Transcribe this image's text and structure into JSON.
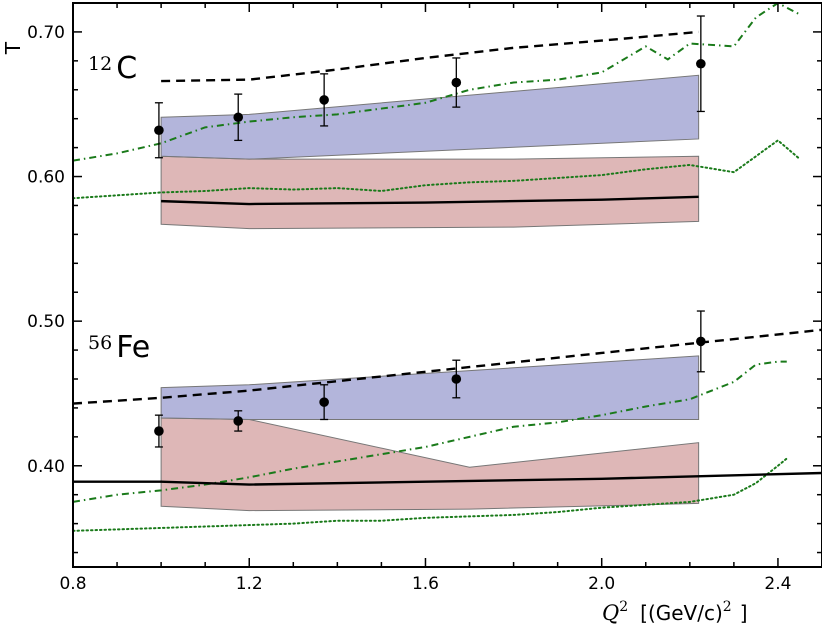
{
  "chart_data": {
    "type": "line",
    "title": "",
    "xlabel": {
      "symbol": "Q",
      "symbol_sup": "2",
      "unit_open": "[(GeV/c)",
      "unit_sup": "2",
      "unit_close": "]"
    },
    "ylabel": "T",
    "xlim": [
      0.8,
      2.5
    ],
    "ylim": [
      0.33,
      0.72
    ],
    "x_ticks": [
      0.8,
      1.2,
      1.6,
      2.0,
      2.4
    ],
    "x_tick_labels": [
      "0.8",
      "1.2",
      "1.6",
      "2.0",
      "2.4"
    ],
    "y_ticks": [
      0.4,
      0.5,
      0.6,
      0.7
    ],
    "y_tick_labels": [
      "0.40",
      "0.50",
      "0.60",
      "0.70"
    ],
    "grid": false,
    "legend": "none",
    "panels": [
      {
        "label_sup": "12",
        "label": "C",
        "data_points": [
          {
            "x": 0.995,
            "y": 0.632,
            "yerr": 0.019
          },
          {
            "x": 1.175,
            "y": 0.641,
            "yerr": 0.016
          },
          {
            "x": 1.37,
            "y": 0.653,
            "yerr": 0.018
          },
          {
            "x": 1.67,
            "y": 0.665,
            "yerr": 0.017
          },
          {
            "x": 2.225,
            "y": 0.678,
            "yerr": 0.033
          }
        ],
        "blue_band": {
          "x": [
            1.0,
            1.2,
            2.22
          ],
          "lower": [
            0.614,
            0.612,
            0.626
          ],
          "upper": [
            0.641,
            0.643,
            0.67
          ]
        },
        "red_band": {
          "x": [
            1.0,
            1.2,
            1.8,
            2.22
          ],
          "lower": [
            0.567,
            0.564,
            0.565,
            0.569
          ],
          "upper": [
            0.614,
            0.612,
            0.612,
            0.614
          ]
        },
        "dashed": {
          "x": [
            1.0,
            1.2,
            1.4,
            1.6,
            1.8,
            2.0,
            2.22
          ],
          "y": [
            0.666,
            0.667,
            0.674,
            0.682,
            0.689,
            0.694,
            0.7
          ]
        },
        "solid": {
          "x": [
            1.0,
            1.2,
            1.6,
            2.0,
            2.22
          ],
          "y": [
            0.583,
            0.581,
            0.582,
            0.584,
            0.586
          ]
        },
        "dashdot": {
          "x": [
            0.8,
            0.9,
            1.0,
            1.1,
            1.2,
            1.3,
            1.4,
            1.5,
            1.6,
            1.7,
            1.8,
            1.9,
            2.0,
            2.1,
            2.15,
            2.2,
            2.3,
            2.35,
            2.4,
            2.45
          ],
          "y": [
            0.611,
            0.616,
            0.623,
            0.634,
            0.638,
            0.641,
            0.643,
            0.647,
            0.651,
            0.66,
            0.665,
            0.667,
            0.672,
            0.69,
            0.681,
            0.692,
            0.69,
            0.71,
            0.72,
            0.712
          ]
        },
        "dotted": {
          "x": [
            0.8,
            0.9,
            1.0,
            1.1,
            1.2,
            1.3,
            1.4,
            1.5,
            1.6,
            1.7,
            1.8,
            1.9,
            2.0,
            2.1,
            2.2,
            2.3,
            2.35,
            2.4,
            2.45
          ],
          "y": [
            0.585,
            0.587,
            0.589,
            0.59,
            0.592,
            0.591,
            0.592,
            0.59,
            0.594,
            0.596,
            0.597,
            0.599,
            0.601,
            0.605,
            0.608,
            0.603,
            0.614,
            0.625,
            0.612
          ]
        }
      },
      {
        "label_sup": "56",
        "label": "Fe",
        "data_points": [
          {
            "x": 0.995,
            "y": 0.424,
            "yerr": 0.011
          },
          {
            "x": 1.175,
            "y": 0.431,
            "yerr": 0.007
          },
          {
            "x": 1.37,
            "y": 0.444,
            "yerr": 0.012
          },
          {
            "x": 1.67,
            "y": 0.46,
            "yerr": 0.013
          },
          {
            "x": 2.225,
            "y": 0.486,
            "yerr": 0.021
          }
        ],
        "blue_band": {
          "x": [
            1.0,
            1.2,
            2.22
          ],
          "lower": [
            0.433,
            0.432,
            0.432
          ],
          "upper": [
            0.454,
            0.456,
            0.476
          ]
        },
        "red_band": {
          "x": [
            1.0,
            1.2,
            1.7,
            2.22
          ],
          "lower": [
            0.372,
            0.369,
            0.37,
            0.374
          ],
          "upper": [
            0.433,
            0.432,
            0.399,
            0.416
          ]
        },
        "dashed": {
          "x": [
            0.8,
            1.0,
            1.2,
            1.6,
            2.0,
            2.5
          ],
          "y": [
            0.443,
            0.447,
            0.452,
            0.465,
            0.478,
            0.494
          ]
        },
        "solid": {
          "x": [
            0.8,
            1.0,
            1.2,
            1.6,
            2.0,
            2.5
          ],
          "y": [
            0.389,
            0.389,
            0.387,
            0.389,
            0.391,
            0.395
          ]
        },
        "dashdot": {
          "x": [
            0.8,
            0.9,
            1.0,
            1.1,
            1.2,
            1.3,
            1.4,
            1.5,
            1.6,
            1.7,
            1.8,
            1.9,
            2.0,
            2.1,
            2.2,
            2.3,
            2.35,
            2.4,
            2.42
          ],
          "y": [
            0.375,
            0.38,
            0.383,
            0.387,
            0.392,
            0.398,
            0.403,
            0.408,
            0.413,
            0.42,
            0.427,
            0.43,
            0.435,
            0.441,
            0.446,
            0.458,
            0.47,
            0.472,
            0.472
          ]
        },
        "dotted": {
          "x": [
            0.8,
            0.9,
            1.0,
            1.1,
            1.2,
            1.3,
            1.4,
            1.5,
            1.6,
            1.7,
            1.8,
            1.9,
            2.0,
            2.1,
            2.2,
            2.3,
            2.35,
            2.4,
            2.42
          ],
          "y": [
            0.355,
            0.356,
            0.357,
            0.358,
            0.359,
            0.36,
            0.362,
            0.362,
            0.364,
            0.365,
            0.366,
            0.368,
            0.371,
            0.373,
            0.375,
            0.38,
            0.388,
            0.4,
            0.405
          ]
        }
      }
    ],
    "colors": {
      "blue_band": "#8b8fc9",
      "red_band": "#c98a8a",
      "band_edge": "#777777",
      "dashdot": "#1a7a1a",
      "dotted": "#1a7a1a",
      "theory_lines": "#000000",
      "points": "#000000"
    }
  }
}
